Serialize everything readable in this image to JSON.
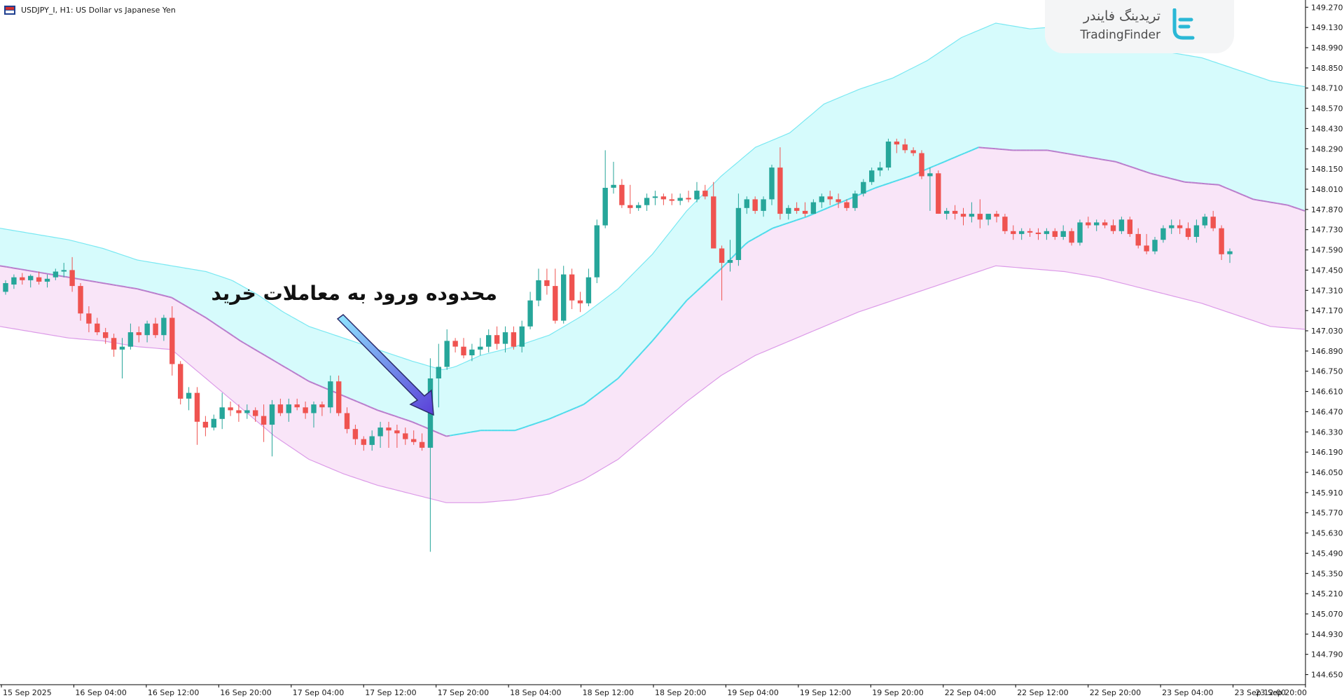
{
  "window": {
    "title": "USDJPY_I, H1:  US Dollar vs Japanese Yen",
    "icon": "chart-window-icon"
  },
  "logo": {
    "text_fa": "تریدینگ فایندر",
    "text_en": "TradingFinder",
    "icon": "tradingfinder-logo-icon"
  },
  "annotation": {
    "text": "محدوده ورود به معاملات خرید",
    "arrow_icon": "arrow-pointer-icon"
  },
  "colors": {
    "bull": "#26a69a",
    "bear": "#ef5350",
    "upper_band_fill": "#d6fbfc",
    "lower_band_fill": "#f9e5f8",
    "upper_band_line": "#7ae8f2",
    "middle_line_bull": "#4fdbeb",
    "middle_line_bear": "#b97dcc",
    "lower_band_line": "#dc9be8"
  },
  "chart_data": {
    "type": "candlestick",
    "symbol": "USDJPY_I",
    "timeframe": "H1",
    "ylim": [
      144.58,
      149.32
    ],
    "y_ticks": [
      "149.270",
      "149.130",
      "148.990",
      "148.850",
      "148.710",
      "148.570",
      "148.430",
      "148.290",
      "148.150",
      "148.010",
      "147.870",
      "147.730",
      "147.590",
      "147.450",
      "147.310",
      "147.170",
      "147.030",
      "146.890",
      "146.750",
      "146.610",
      "146.470",
      "146.330",
      "146.190",
      "146.050",
      "145.910",
      "145.770",
      "145.630",
      "145.490",
      "145.350",
      "145.210",
      "145.070",
      "144.930",
      "144.790",
      "144.650"
    ],
    "x_ticks": [
      "15 Sep 2025",
      "16 Sep 04:00",
      "16 Sep 12:00",
      "16 Sep 20:00",
      "17 Sep 04:00",
      "17 Sep 12:00",
      "17 Sep 20:00",
      "18 Sep 04:00",
      "18 Sep 12:00",
      "18 Sep 20:00",
      "19 Sep 04:00",
      "19 Sep 12:00",
      "19 Sep 20:00",
      "22 Sep 04:00",
      "22 Sep 12:00",
      "22 Sep 20:00",
      "23 Sep 04:00",
      "23 Sep 12:00",
      "23 Sep 20:00"
    ],
    "candles": [
      [
        147.3,
        147.38,
        147.28,
        147.36
      ],
      [
        147.35,
        147.42,
        147.32,
        147.4
      ],
      [
        147.4,
        147.43,
        147.35,
        147.38
      ],
      [
        147.38,
        147.42,
        147.33,
        147.41
      ],
      [
        147.4,
        147.44,
        147.35,
        147.37
      ],
      [
        147.37,
        147.42,
        147.33,
        147.39
      ],
      [
        147.4,
        147.46,
        147.38,
        147.44
      ],
      [
        147.44,
        147.5,
        147.4,
        147.45
      ],
      [
        147.45,
        147.54,
        147.3,
        147.34
      ],
      [
        147.34,
        147.36,
        147.1,
        147.15
      ],
      [
        147.15,
        147.2,
        147.02,
        147.08
      ],
      [
        147.08,
        147.12,
        147.0,
        147.02
      ],
      [
        147.02,
        147.05,
        146.94,
        146.98
      ],
      [
        146.98,
        147.01,
        146.85,
        146.9
      ],
      [
        146.9,
        146.98,
        146.7,
        146.92
      ],
      [
        146.92,
        147.08,
        146.9,
        147.02
      ],
      [
        147.02,
        147.06,
        146.95,
        147.0
      ],
      [
        147.0,
        147.1,
        146.95,
        147.08
      ],
      [
        147.08,
        147.12,
        146.98,
        147.0
      ],
      [
        147.0,
        147.14,
        146.96,
        147.12
      ],
      [
        147.12,
        147.2,
        146.72,
        146.8
      ],
      [
        146.8,
        146.82,
        146.52,
        146.56
      ],
      [
        146.56,
        146.64,
        146.48,
        146.6
      ],
      [
        146.6,
        146.64,
        146.24,
        146.4
      ],
      [
        146.4,
        146.44,
        146.3,
        146.36
      ],
      [
        146.36,
        146.45,
        146.34,
        146.42
      ],
      [
        146.42,
        146.6,
        146.35,
        146.5
      ],
      [
        146.5,
        146.54,
        146.44,
        146.48
      ],
      [
        146.48,
        146.52,
        146.4,
        146.46
      ],
      [
        146.46,
        146.52,
        146.42,
        146.48
      ],
      [
        146.48,
        146.5,
        146.4,
        146.44
      ],
      [
        146.44,
        146.52,
        146.26,
        146.38
      ],
      [
        146.38,
        146.55,
        146.16,
        146.52
      ],
      [
        146.52,
        146.56,
        146.44,
        146.46
      ],
      [
        146.46,
        146.56,
        146.4,
        146.52
      ],
      [
        146.52,
        146.56,
        146.48,
        146.5
      ],
      [
        146.5,
        146.54,
        146.42,
        146.46
      ],
      [
        146.46,
        146.54,
        146.36,
        146.52
      ],
      [
        146.52,
        146.54,
        146.44,
        146.5
      ],
      [
        146.5,
        146.72,
        146.46,
        146.68
      ],
      [
        146.68,
        146.72,
        146.44,
        146.46
      ],
      [
        146.46,
        146.5,
        146.32,
        146.35
      ],
      [
        146.35,
        146.38,
        146.24,
        146.28
      ],
      [
        146.28,
        146.3,
        146.2,
        146.24
      ],
      [
        146.24,
        146.34,
        146.2,
        146.3
      ],
      [
        146.3,
        146.4,
        146.22,
        146.36
      ],
      [
        146.36,
        146.4,
        146.22,
        146.34
      ],
      [
        146.34,
        146.38,
        146.22,
        146.32
      ],
      [
        146.32,
        146.36,
        146.24,
        146.28
      ],
      [
        146.28,
        146.34,
        146.24,
        146.26
      ],
      [
        146.26,
        146.32,
        146.2,
        146.22
      ],
      [
        146.22,
        146.84,
        145.5,
        146.7
      ],
      [
        146.7,
        146.94,
        146.5,
        146.78
      ],
      [
        146.78,
        147.04,
        146.76,
        146.96
      ],
      [
        146.96,
        146.98,
        146.88,
        146.92
      ],
      [
        146.92,
        146.98,
        146.84,
        146.86
      ],
      [
        146.86,
        146.94,
        146.82,
        146.9
      ],
      [
        146.9,
        146.98,
        146.86,
        146.92
      ],
      [
        146.92,
        147.04,
        146.88,
        147.0
      ],
      [
        147.0,
        147.06,
        146.9,
        146.94
      ],
      [
        146.94,
        147.06,
        146.88,
        147.02
      ],
      [
        147.02,
        147.06,
        146.9,
        146.92
      ],
      [
        146.92,
        147.1,
        146.88,
        147.06
      ],
      [
        147.06,
        147.3,
        147.04,
        147.24
      ],
      [
        147.24,
        147.46,
        147.2,
        147.38
      ],
      [
        147.38,
        147.46,
        147.28,
        147.34
      ],
      [
        147.34,
        147.46,
        147.08,
        147.1
      ],
      [
        147.1,
        147.48,
        147.08,
        147.42
      ],
      [
        147.42,
        147.46,
        147.18,
        147.24
      ],
      [
        147.24,
        147.3,
        147.16,
        147.22
      ],
      [
        147.22,
        147.46,
        147.2,
        147.4
      ],
      [
        147.4,
        147.8,
        147.36,
        147.76
      ],
      [
        147.76,
        148.28,
        147.74,
        148.02
      ],
      [
        148.02,
        148.2,
        147.98,
        148.04
      ],
      [
        148.04,
        148.08,
        147.88,
        147.9
      ],
      [
        147.9,
        148.04,
        147.84,
        147.88
      ],
      [
        147.88,
        147.92,
        147.86,
        147.9
      ],
      [
        147.9,
        147.98,
        147.86,
        147.95
      ],
      [
        147.95,
        148.0,
        147.9,
        147.96
      ],
      [
        147.96,
        147.98,
        147.9,
        147.94
      ],
      [
        147.94,
        147.98,
        147.9,
        147.93
      ],
      [
        147.93,
        147.98,
        147.9,
        147.95
      ],
      [
        147.95,
        148.0,
        147.92,
        147.94
      ],
      [
        147.94,
        148.06,
        147.92,
        148.0
      ],
      [
        148.0,
        148.04,
        147.94,
        147.96
      ],
      [
        147.96,
        148.06,
        147.6,
        147.6
      ],
      [
        147.6,
        147.62,
        147.24,
        147.5
      ],
      [
        147.5,
        147.66,
        147.44,
        147.52
      ],
      [
        147.52,
        147.98,
        147.48,
        147.88
      ],
      [
        147.88,
        147.96,
        147.84,
        147.94
      ],
      [
        147.94,
        147.96,
        147.84,
        147.86
      ],
      [
        147.86,
        147.96,
        147.82,
        147.94
      ],
      [
        147.94,
        148.18,
        147.9,
        148.16
      ],
      [
        148.16,
        148.3,
        147.8,
        147.84
      ],
      [
        147.84,
        147.9,
        147.8,
        147.88
      ],
      [
        147.88,
        147.92,
        147.84,
        147.86
      ],
      [
        147.86,
        147.92,
        147.82,
        147.84
      ],
      [
        147.84,
        147.94,
        147.84,
        147.92
      ],
      [
        147.92,
        147.98,
        147.88,
        147.96
      ],
      [
        147.96,
        148.0,
        147.9,
        147.94
      ],
      [
        147.94,
        147.98,
        147.88,
        147.92
      ],
      [
        147.92,
        147.94,
        147.86,
        147.88
      ],
      [
        147.88,
        148.0,
        147.86,
        147.98
      ],
      [
        147.98,
        148.08,
        147.96,
        148.06
      ],
      [
        148.06,
        148.16,
        148.04,
        148.14
      ],
      [
        148.14,
        148.2,
        148.1,
        148.16
      ],
      [
        148.16,
        148.36,
        148.14,
        148.34
      ],
      [
        148.34,
        148.36,
        148.26,
        148.32
      ],
      [
        148.32,
        148.36,
        148.26,
        148.28
      ],
      [
        148.28,
        148.3,
        148.24,
        148.26
      ],
      [
        148.26,
        148.28,
        148.08,
        148.1
      ],
      [
        148.1,
        148.16,
        147.86,
        148.12
      ],
      [
        148.12,
        148.14,
        147.84,
        147.84
      ],
      [
        147.84,
        147.88,
        147.8,
        147.86
      ],
      [
        147.86,
        147.9,
        147.8,
        147.84
      ],
      [
        147.84,
        147.88,
        147.76,
        147.82
      ],
      [
        147.82,
        147.92,
        147.78,
        147.84
      ],
      [
        147.84,
        147.94,
        147.74,
        147.8
      ],
      [
        147.8,
        147.84,
        147.76,
        147.84
      ],
      [
        147.84,
        147.86,
        147.78,
        147.82
      ],
      [
        147.82,
        147.84,
        147.7,
        147.72
      ],
      [
        147.72,
        147.76,
        147.66,
        147.7
      ],
      [
        147.7,
        147.74,
        147.66,
        147.72
      ],
      [
        147.72,
        147.74,
        147.68,
        147.71
      ],
      [
        147.71,
        147.74,
        147.66,
        147.7
      ],
      [
        147.7,
        147.74,
        147.66,
        147.72
      ],
      [
        147.72,
        147.74,
        147.66,
        147.68
      ],
      [
        147.68,
        147.76,
        147.66,
        147.72
      ],
      [
        147.72,
        147.74,
        147.62,
        147.64
      ],
      [
        147.64,
        147.8,
        147.62,
        147.78
      ],
      [
        147.78,
        147.82,
        147.74,
        147.76
      ],
      [
        147.76,
        147.8,
        147.72,
        147.78
      ],
      [
        147.78,
        147.8,
        147.74,
        147.76
      ],
      [
        147.76,
        147.8,
        147.7,
        147.72
      ],
      [
        147.72,
        147.82,
        147.7,
        147.8
      ],
      [
        147.8,
        147.82,
        147.68,
        147.7
      ],
      [
        147.7,
        147.74,
        147.6,
        147.62
      ],
      [
        147.62,
        147.7,
        147.56,
        147.58
      ],
      [
        147.58,
        147.68,
        147.56,
        147.66
      ],
      [
        147.66,
        147.76,
        147.64,
        147.74
      ],
      [
        147.74,
        147.8,
        147.7,
        147.76
      ],
      [
        147.76,
        147.8,
        147.7,
        147.74
      ],
      [
        147.74,
        147.78,
        147.66,
        147.68
      ],
      [
        147.68,
        147.8,
        147.64,
        147.76
      ],
      [
        147.76,
        147.84,
        147.74,
        147.82
      ],
      [
        147.82,
        147.86,
        147.72,
        147.74
      ],
      [
        147.74,
        147.76,
        147.52,
        147.56
      ],
      [
        147.56,
        147.6,
        147.5,
        147.58
      ]
    ],
    "bands": {
      "upper": [
        [
          0,
          147.74
        ],
        [
          40,
          147.7
        ],
        [
          80,
          147.66
        ],
        [
          120,
          147.6
        ],
        [
          160,
          147.52
        ],
        [
          200,
          147.48
        ],
        [
          240,
          147.44
        ],
        [
          270,
          147.38
        ],
        [
          300,
          147.28
        ],
        [
          330,
          147.16
        ],
        [
          360,
          147.06
        ],
        [
          400,
          146.98
        ],
        [
          440,
          146.9
        ],
        [
          480,
          146.82
        ],
        [
          515,
          146.76
        ],
        [
          530,
          146.78
        ],
        [
          560,
          146.86
        ],
        [
          600,
          146.92
        ],
        [
          640,
          147.0
        ],
        [
          680,
          147.14
        ],
        [
          720,
          147.32
        ],
        [
          760,
          147.56
        ],
        [
          800,
          147.86
        ],
        [
          840,
          148.1
        ],
        [
          880,
          148.3
        ],
        [
          920,
          148.4
        ],
        [
          960,
          148.6
        ],
        [
          1000,
          148.7
        ],
        [
          1040,
          148.78
        ],
        [
          1080,
          148.9
        ],
        [
          1120,
          149.06
        ],
        [
          1160,
          149.16
        ],
        [
          1200,
          149.12
        ],
        [
          1240,
          149.14
        ],
        [
          1280,
          149.1
        ],
        [
          1320,
          149.02
        ],
        [
          1360,
          148.96
        ],
        [
          1400,
          148.92
        ],
        [
          1440,
          148.84
        ],
        [
          1480,
          148.76
        ],
        [
          1520,
          148.72
        ]
      ],
      "middle": [
        [
          0,
          147.48
        ],
        [
          40,
          147.44
        ],
        [
          80,
          147.4
        ],
        [
          120,
          147.36
        ],
        [
          160,
          147.32
        ],
        [
          200,
          147.26
        ],
        [
          240,
          147.12
        ],
        [
          280,
          146.96
        ],
        [
          320,
          146.82
        ],
        [
          360,
          146.68
        ],
        [
          400,
          146.58
        ],
        [
          440,
          146.48
        ],
        [
          480,
          146.4
        ],
        [
          520,
          146.3
        ],
        [
          560,
          146.34
        ],
        [
          600,
          146.34
        ],
        [
          640,
          146.42
        ],
        [
          680,
          146.52
        ],
        [
          720,
          146.7
        ],
        [
          760,
          146.96
        ],
        [
          800,
          147.24
        ],
        [
          840,
          147.46
        ],
        [
          870,
          147.64
        ],
        [
          900,
          147.74
        ],
        [
          940,
          147.82
        ],
        [
          980,
          147.92
        ],
        [
          1020,
          148.02
        ],
        [
          1060,
          148.1
        ],
        [
          1100,
          148.2
        ],
        [
          1140,
          148.3
        ],
        [
          1180,
          148.28
        ],
        [
          1220,
          148.28
        ],
        [
          1260,
          148.24
        ],
        [
          1300,
          148.2
        ],
        [
          1340,
          148.12
        ],
        [
          1380,
          148.06
        ],
        [
          1420,
          148.04
        ],
        [
          1460,
          147.94
        ],
        [
          1500,
          147.9
        ],
        [
          1520,
          147.86
        ]
      ],
      "lower": [
        [
          0,
          147.06
        ],
        [
          40,
          147.02
        ],
        [
          80,
          146.98
        ],
        [
          120,
          146.96
        ],
        [
          160,
          146.92
        ],
        [
          200,
          146.9
        ],
        [
          240,
          146.7
        ],
        [
          280,
          146.5
        ],
        [
          320,
          146.3
        ],
        [
          360,
          146.14
        ],
        [
          400,
          146.04
        ],
        [
          440,
          145.96
        ],
        [
          480,
          145.9
        ],
        [
          520,
          145.84
        ],
        [
          560,
          145.84
        ],
        [
          600,
          145.86
        ],
        [
          640,
          145.9
        ],
        [
          680,
          146.0
        ],
        [
          720,
          146.14
        ],
        [
          760,
          146.34
        ],
        [
          800,
          146.54
        ],
        [
          840,
          146.72
        ],
        [
          880,
          146.86
        ],
        [
          920,
          146.96
        ],
        [
          960,
          147.06
        ],
        [
          1000,
          147.16
        ],
        [
          1040,
          147.24
        ],
        [
          1080,
          147.32
        ],
        [
          1120,
          147.4
        ],
        [
          1160,
          147.48
        ],
        [
          1200,
          147.46
        ],
        [
          1240,
          147.44
        ],
        [
          1280,
          147.4
        ],
        [
          1320,
          147.34
        ],
        [
          1360,
          147.28
        ],
        [
          1400,
          147.22
        ],
        [
          1440,
          147.14
        ],
        [
          1480,
          147.06
        ],
        [
          1520,
          147.04
        ]
      ]
    }
  }
}
